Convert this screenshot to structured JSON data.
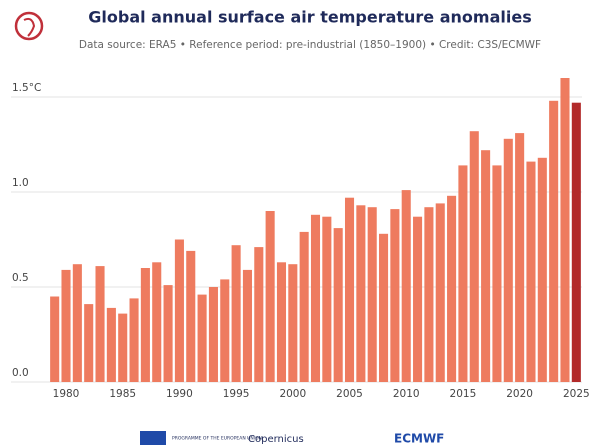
{
  "chart_data": {
    "type": "bar",
    "title": "Global annual surface air temperature anomalies",
    "subtitle": "Data source: ERA5 • Reference period: pre-industrial (1850–1900) • Credit: C3S/ECMWF",
    "x": [
      1979,
      1980,
      1981,
      1982,
      1983,
      1984,
      1985,
      1986,
      1987,
      1988,
      1989,
      1990,
      1991,
      1992,
      1993,
      1994,
      1995,
      1996,
      1997,
      1998,
      1999,
      2000,
      2001,
      2002,
      2003,
      2004,
      2005,
      2006,
      2007,
      2008,
      2009,
      2010,
      2011,
      2012,
      2013,
      2014,
      2015,
      2016,
      2017,
      2018,
      2019,
      2020,
      2021,
      2022,
      2023,
      2024,
      2025
    ],
    "values": [
      0.45,
      0.59,
      0.62,
      0.41,
      0.61,
      0.39,
      0.36,
      0.44,
      0.6,
      0.63,
      0.51,
      0.75,
      0.69,
      0.46,
      0.5,
      0.54,
      0.72,
      0.59,
      0.71,
      0.9,
      0.63,
      0.62,
      0.79,
      0.88,
      0.87,
      0.81,
      0.97,
      0.93,
      0.92,
      0.78,
      0.91,
      1.01,
      0.87,
      0.92,
      0.94,
      0.98,
      1.14,
      1.32,
      1.22,
      1.14,
      1.28,
      1.31,
      1.16,
      1.18,
      1.48,
      1.6,
      1.47
    ],
    "colors": [
      "#ee7b5f",
      "#ee7b5f",
      "#ee7b5f",
      "#ee7b5f",
      "#ee7b5f",
      "#ee7b5f",
      "#ee7b5f",
      "#ee7b5f",
      "#ee7b5f",
      "#ee7b5f",
      "#ee7b5f",
      "#ee7b5f",
      "#ee7b5f",
      "#ee7b5f",
      "#ee7b5f",
      "#ee7b5f",
      "#ee7b5f",
      "#ee7b5f",
      "#ee7b5f",
      "#ee7b5f",
      "#ee7b5f",
      "#ee7b5f",
      "#ee7b5f",
      "#ee7b5f",
      "#ee7b5f",
      "#ee7b5f",
      "#ee7b5f",
      "#ee7b5f",
      "#ee7b5f",
      "#ee7b5f",
      "#ee7b5f",
      "#ee7b5f",
      "#ee7b5f",
      "#ee7b5f",
      "#ee7b5f",
      "#ee7b5f",
      "#ee7b5f",
      "#ee7b5f",
      "#ee7b5f",
      "#ee7b5f",
      "#ee7b5f",
      "#ee7b5f",
      "#ee7b5f",
      "#ee7b5f",
      "#ee7b5f",
      "#ee7b5f",
      "#b22a2a"
    ],
    "xlim": [
      1978.5,
      2025.5
    ],
    "xticks": [
      1980,
      1985,
      1990,
      1995,
      2000,
      2005,
      2010,
      2015,
      2020,
      2025
    ],
    "ylim": [
      0,
      1.7
    ],
    "yticks": [
      {
        "value": 0,
        "label": "0.0"
      },
      0.5,
      {
        "value": 1,
        "label": "1.0"
      },
      {
        "value": 1.5,
        "label": "1.5°C"
      }
    ],
    "grid": true,
    "footer_logos": [
      "PROGRAMME OF THE EUROPEAN UNION",
      "Copernicus",
      "ECMWF"
    ]
  }
}
